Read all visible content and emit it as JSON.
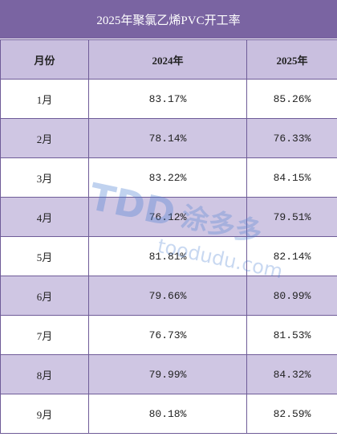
{
  "title": "2025年聚氯乙烯PVC开工率",
  "table": {
    "header": [
      "月份",
      "2024年",
      "2025年"
    ],
    "rows": [
      [
        "1月",
        "83.17%",
        "85.26%"
      ],
      [
        "2月",
        "78.14%",
        "76.33%"
      ],
      [
        "3月",
        "83.22%",
        "84.15%"
      ],
      [
        "4月",
        "76.12%",
        "79.51%"
      ],
      [
        "5月",
        "81.81%",
        "82.14%"
      ],
      [
        "6月",
        "79.66%",
        "80.99%"
      ],
      [
        "7月",
        "76.73%",
        "81.53%"
      ],
      [
        "8月",
        "79.99%",
        "84.32%"
      ],
      [
        "9月",
        "80.18%",
        "82.59%"
      ]
    ]
  },
  "watermark": {
    "logo": "TDD",
    "brand": "涂多多",
    "url": "toodudu.com"
  }
}
